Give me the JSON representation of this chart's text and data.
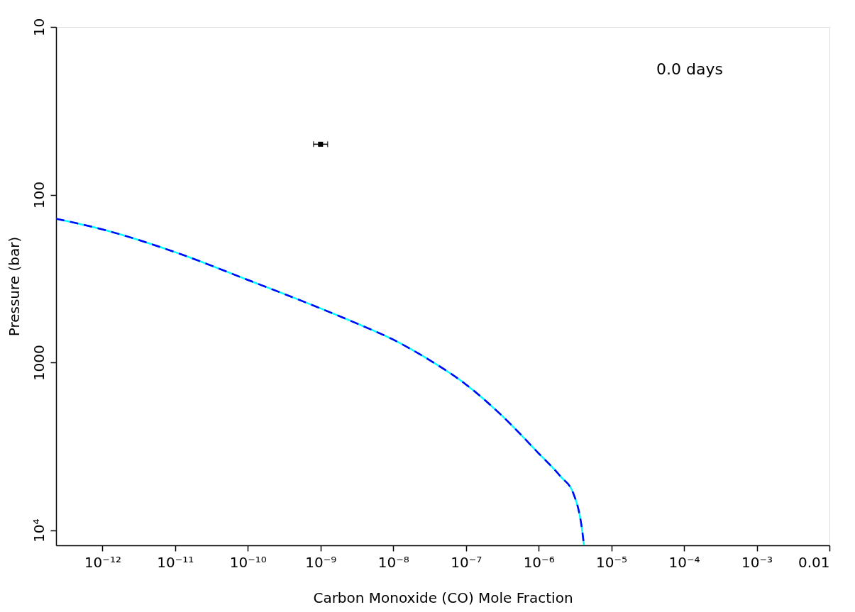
{
  "chart_data": {
    "type": "line",
    "xlabel": "Carbon Monoxide (CO) Mole Fraction",
    "ylabel": "Pressure (bar)",
    "annotations": [
      "0.0 days"
    ],
    "log": "xy",
    "grid": false,
    "xlim": [
      2.3e-13,
      0.01
    ],
    "xticks": [
      {
        "value": 1e-12,
        "label": "10⁻¹²"
      },
      {
        "value": 1e-11,
        "label": "10⁻¹¹"
      },
      {
        "value": 1e-10,
        "label": "10⁻¹⁰"
      },
      {
        "value": 1e-09,
        "label": "10⁻⁹"
      },
      {
        "value": 1e-08,
        "label": "10⁻⁸"
      },
      {
        "value": 1e-07,
        "label": "10⁻⁷"
      },
      {
        "value": 1e-06,
        "label": "10⁻⁶"
      },
      {
        "value": 1e-05,
        "label": "10⁻⁵"
      },
      {
        "value": 0.0001,
        "label": "10⁻⁴"
      },
      {
        "value": 0.001,
        "label": "10⁻³"
      },
      0.01
    ],
    "ylim": [
      12300,
      10
    ],
    "yticks": [
      10,
      100,
      1000,
      {
        "value": 10000,
        "label": "10⁴"
      }
    ],
    "series": [
      {
        "color": "#00ffff",
        "line_style": "solid",
        "marker": "none",
        "x": [
          2.3e-13,
          1e-12,
          1e-11,
          1e-10,
          1e-09,
          3e-09,
          1e-08,
          3e-08,
          1e-07,
          3e-07,
          1e-06,
          2e-06,
          3e-06,
          4e-06,
          4.2e-06
        ],
        "values": [
          139,
          161,
          220,
          322,
          476,
          580,
          731,
          955,
          1352,
          2040,
          3480,
          4780,
          6030,
          10300,
          12300
        ]
      },
      {
        "color": "#0000ff",
        "line_style": "dashed",
        "marker": "none",
        "x": [
          2.3e-13,
          1e-12,
          1e-11,
          1e-10,
          1e-09,
          3e-09,
          1e-08,
          3e-08,
          1e-07,
          3e-07,
          1e-06,
          2e-06,
          3e-06,
          4e-06,
          4.2e-06
        ],
        "values": [
          139,
          161,
          220,
          322,
          476,
          580,
          731,
          955,
          1352,
          2040,
          3480,
          4780,
          6030,
          10300,
          12300
        ]
      },
      {
        "type": "scatter",
        "color": "#000000",
        "marker": "square",
        "x": [
          1e-09
        ],
        "values": [
          50
        ],
        "xerrors": [
          [
            8e-10,
            1.25e-09
          ]
        ]
      }
    ]
  }
}
